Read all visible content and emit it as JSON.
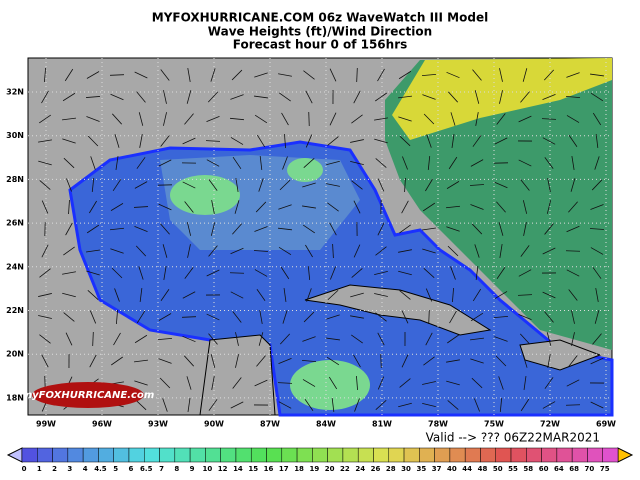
{
  "header": {
    "lines": [
      "MYFOXHURRICANE.COM 06z WaveWatch III Model",
      "Wave Heights (ft)/Wind Direction",
      "Forecast hour 0 of 156hrs"
    ]
  },
  "map": {
    "lat_labels": [
      "32N",
      "30N",
      "28N",
      "26N",
      "24N",
      "22N",
      "20N",
      "18N"
    ],
    "lon_labels": [
      "99W",
      "96W",
      "93W",
      "90W",
      "87W",
      "84W",
      "81W",
      "78W",
      "75W",
      "72W",
      "69W"
    ],
    "logo": "myFOXHURRICANE.com"
  },
  "valid": "Valid --> ??? 06Z22MAR2021",
  "scale": {
    "labels": [
      "0",
      "1",
      "2",
      "3",
      "4",
      "4.5",
      "5",
      "6",
      "6.5",
      "7",
      "8",
      "9",
      "10",
      "12",
      "14",
      "15",
      "16",
      "17",
      "18",
      "19",
      "20",
      "22",
      "24",
      "26",
      "28",
      "30",
      "35",
      "37",
      "40",
      "44",
      "48",
      "50",
      "55",
      "58",
      "60",
      "64",
      "68",
      "70",
      "75"
    ]
  }
}
